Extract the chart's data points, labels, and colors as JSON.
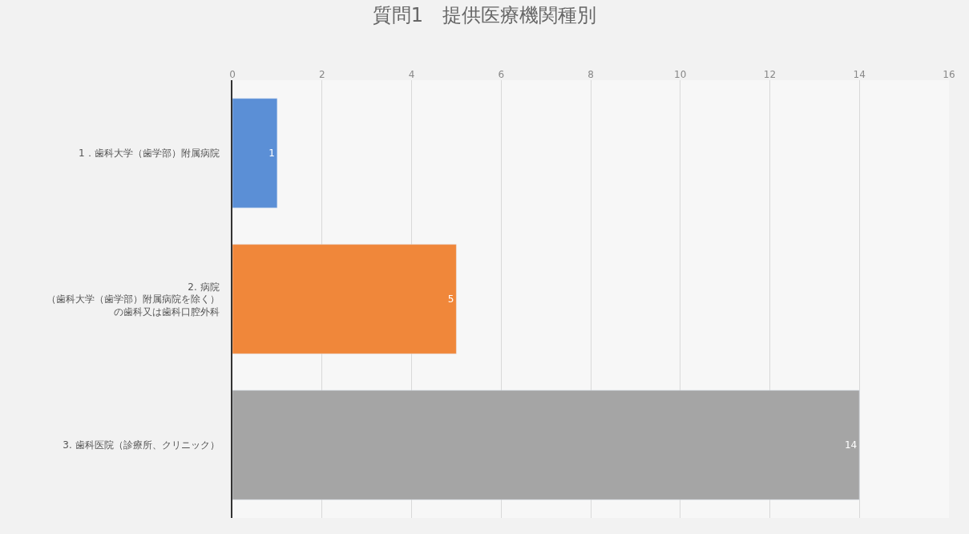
{
  "chart_data": {
    "type": "bar",
    "orientation": "horizontal",
    "title": "質問1　提供医療機関種別",
    "categories": [
      "1．歯科大学（歯学部）附属病院",
      "2. 病院（歯科大学（歯学部）附属病院を除く）の歯科又は歯科口腔外科",
      "3. 歯科医院（診療所、クリニック）"
    ],
    "values": [
      1,
      5,
      14
    ],
    "colors": [
      "#5b8fd6",
      "#f0873a",
      "#a5a5a5"
    ],
    "xlim": [
      0,
      16
    ],
    "xticks": [
      0,
      2,
      4,
      6,
      8,
      10,
      12,
      14,
      16
    ],
    "grid": "x",
    "data_labels": true
  }
}
